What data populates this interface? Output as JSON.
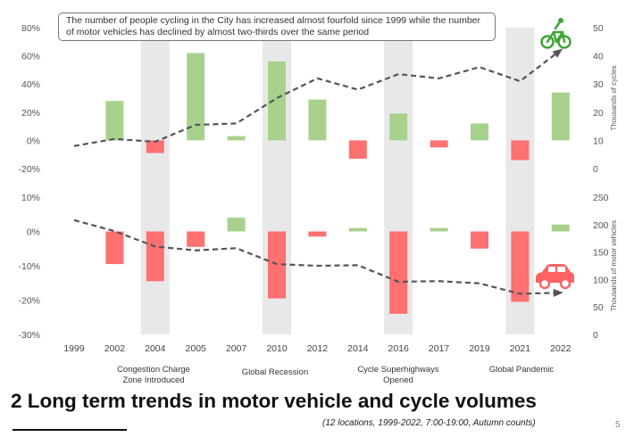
{
  "chart_data": {
    "type": "bar+line",
    "title": "2 Long term trends in motor vehicle and cycle volumes",
    "subtitle": "(12 locations, 1999-2022, 7:00-19:00, Autumn counts)",
    "annotation": "The number of people cycling in the City has increased almost fourfold since 1999 while the number of motor vehicles has declined by almost two-thirds over the same period",
    "page_number": "5",
    "categories": [
      "1999",
      "2002",
      "2004",
      "2005",
      "2007",
      "2010",
      "2012",
      "2014",
      "2016",
      "2017",
      "2019",
      "2021",
      "2022"
    ],
    "highlighted_categories": [
      "2004",
      "2010",
      "2016",
      "2021"
    ],
    "events": [
      {
        "category": "2004",
        "text": "Congestion Charge Zone Introduced"
      },
      {
        "category": "2010",
        "text": "Global Recession"
      },
      {
        "category": "2016",
        "text": "Cycle Superhighways Opened"
      },
      {
        "category": "2021",
        "text": "Global Pandemic"
      }
    ],
    "panels": [
      {
        "name": "cycles",
        "left_axis": {
          "ylim": [
            -20,
            80
          ],
          "ticks": [
            -20,
            0,
            20,
            40,
            60,
            80
          ],
          "tick_labels": [
            "-20%",
            "0%",
            "20%",
            "40%",
            "60%",
            "80%"
          ]
        },
        "right_axis": {
          "label": "Thousands of cycles",
          "ylim": [
            0,
            50
          ],
          "ticks": [
            0,
            10,
            20,
            30,
            40,
            50
          ],
          "tick_labels": [
            "0",
            "10",
            "20",
            "30",
            "40",
            "50"
          ]
        },
        "bars_pct_change": [
          null,
          28,
          -9,
          62,
          3,
          56,
          29,
          -13,
          19,
          -5,
          12,
          -14,
          34
        ],
        "line_thousands": [
          8,
          10.5,
          9.5,
          15.5,
          16,
          25,
          32,
          28,
          33.5,
          32,
          36,
          31,
          42
        ],
        "icon": "bicycle-icon"
      },
      {
        "name": "motor_vehicles",
        "left_axis": {
          "ylim": [
            -30,
            10
          ],
          "ticks": [
            -30,
            -20,
            -10,
            0,
            10
          ],
          "tick_labels": [
            "-30%",
            "-20%",
            "-10%",
            "0%",
            "10%"
          ]
        },
        "right_axis": {
          "label": "Thousands of motor vehicles",
          "ylim": [
            0,
            250
          ],
          "ticks": [
            0,
            50,
            100,
            150,
            200,
            250
          ],
          "tick_labels": [
            "0",
            "50",
            "100",
            "150",
            "200",
            "250"
          ]
        },
        "bars_pct_change": [
          null,
          -9.5,
          -14.5,
          -4.5,
          4,
          -19.5,
          -1.5,
          1,
          -24,
          1,
          -5,
          -20.5,
          2
        ],
        "line_thousands": [
          208,
          188,
          160,
          153,
          157,
          128,
          125,
          126,
          96,
          97,
          93,
          74,
          76
        ],
        "icon": "car-icon"
      }
    ],
    "colors": {
      "increase": "#a9d18e",
      "decrease": "#ff7070",
      "shade": "#e8e8e8",
      "line": "#555555"
    }
  }
}
